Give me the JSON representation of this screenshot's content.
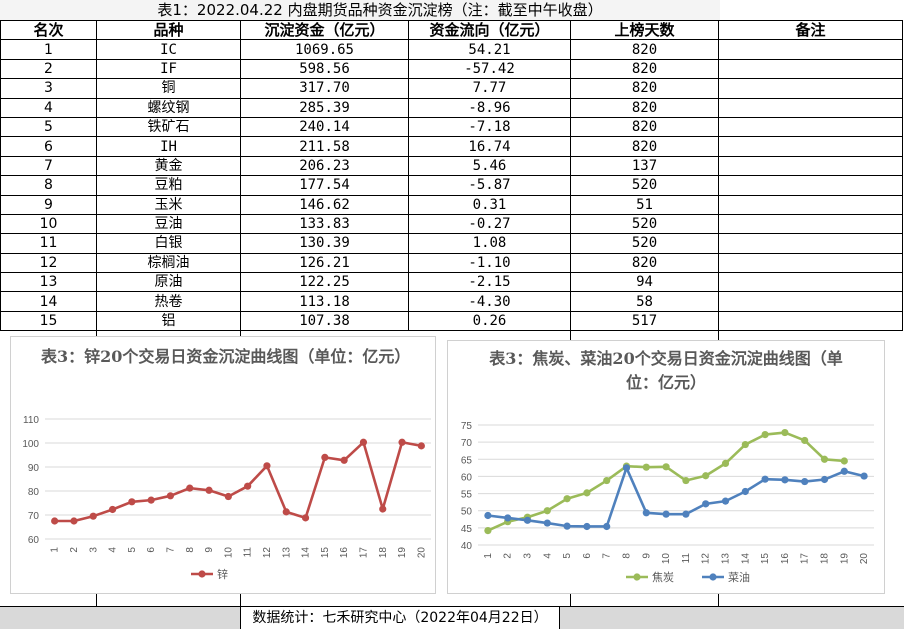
{
  "table": {
    "title": "表1：2022.04.22 内盘期货品种资金沉淀榜（注：截至中午收盘）",
    "headers": [
      "名次",
      "品种",
      "沉淀资金（亿元）",
      "资金流向（亿元）",
      "上榜天数",
      "备注"
    ],
    "rows": [
      [
        "1",
        "IC",
        "1069.65",
        "54.21",
        "820"
      ],
      [
        "2",
        "IF",
        "598.56",
        "-57.42",
        "820"
      ],
      [
        "3",
        "铜",
        "317.70",
        "7.77",
        "820"
      ],
      [
        "4",
        "螺纹钢",
        "285.39",
        "-8.96",
        "820"
      ],
      [
        "5",
        "铁矿石",
        "240.14",
        "-7.18",
        "820"
      ],
      [
        "6",
        "IH",
        "211.58",
        "16.74",
        "820"
      ],
      [
        "7",
        "黄金",
        "206.23",
        "5.46",
        "137"
      ],
      [
        "8",
        "豆粕",
        "177.54",
        "-5.87",
        "520"
      ],
      [
        "9",
        "玉米",
        "146.62",
        "0.31",
        "51"
      ],
      [
        "10",
        "豆油",
        "133.83",
        "-0.27",
        "520"
      ],
      [
        "11",
        "白银",
        "130.39",
        "1.08",
        "520"
      ],
      [
        "12",
        "棕榈油",
        "126.21",
        "-1.10",
        "820"
      ],
      [
        "13",
        "原油",
        "122.25",
        "-2.15",
        "94"
      ],
      [
        "14",
        "热卷",
        "113.18",
        "-4.30",
        "58"
      ],
      [
        "15",
        "铝",
        "107.38",
        "0.26",
        "517"
      ]
    ]
  },
  "footer": "数据统计：七禾研究中心（2022年04月22日）",
  "chart_data": [
    {
      "type": "line",
      "title": "表3：锌20个交易日资金沉淀曲线图（单位：亿元）",
      "x": [
        "1",
        "2",
        "3",
        "4",
        "5",
        "6",
        "7",
        "8",
        "9",
        "10",
        "11",
        "12",
        "13",
        "14",
        "15",
        "16",
        "17",
        "18",
        "19",
        "20"
      ],
      "ylim": [
        60,
        110
      ],
      "yticks": [
        60,
        70,
        80,
        90,
        100,
        110
      ],
      "grid": true,
      "legend_position": "bottom",
      "series": [
        {
          "name": "锌",
          "color": "#be4b48",
          "values": [
            67.5,
            67.5,
            69.5,
            72.3,
            75.5,
            76.2,
            78,
            81.2,
            80.3,
            77.7,
            82,
            90.5,
            71.3,
            68.8,
            94,
            92.8,
            100.3,
            72.5,
            100.3,
            98.8
          ]
        }
      ]
    },
    {
      "type": "line",
      "title": "表3：焦炭、菜油20个交易日资金沉淀曲线图（单位：亿元）",
      "x": [
        "1",
        "2",
        "3",
        "4",
        "5",
        "6",
        "7",
        "8",
        "9",
        "10",
        "11",
        "12",
        "13",
        "14",
        "15",
        "16",
        "17",
        "18",
        "19",
        "20"
      ],
      "ylim": [
        40,
        75
      ],
      "yticks": [
        40,
        45,
        50,
        55,
        60,
        65,
        70,
        75
      ],
      "grid": true,
      "legend_position": "bottom",
      "series": [
        {
          "name": "焦炭",
          "color": "#9bbb59",
          "values": [
            44.2,
            46.8,
            48.1,
            50,
            53.5,
            55.2,
            58.8,
            63,
            62.7,
            62.8,
            58.8,
            60.2,
            63.8,
            69.3,
            72.2,
            72.8,
            70.5,
            65,
            64.5,
            null
          ]
        },
        {
          "name": "菜油",
          "color": "#4f81bd",
          "values": [
            48.6,
            47.9,
            47.2,
            46.4,
            45.5,
            45.4,
            45.4,
            62.5,
            49.4,
            49,
            49,
            52,
            52.8,
            55.6,
            59.2,
            59,
            58.5,
            59.1,
            61.5,
            60.1
          ]
        }
      ]
    }
  ]
}
